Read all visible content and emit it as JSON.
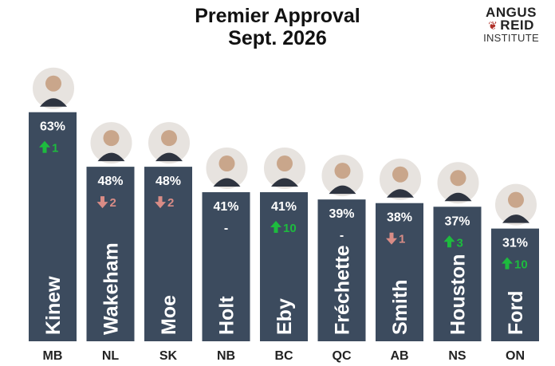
{
  "header": {
    "title_line1": "Premier Approval",
    "title_line2": "Sept. 2026"
  },
  "logo": {
    "line1": "ANGUS",
    "line2": "REID",
    "line3": "INSTITUTE"
  },
  "colors": {
    "bar": "#3c4b5e",
    "up": "#1dbb3e",
    "down": "#d98c86",
    "label": "#ffffff",
    "province": "#222222"
  },
  "chart_data": {
    "type": "bar",
    "title": "Premier Approval Sept. 2026",
    "ylim": [
      0,
      75
    ],
    "grid": false,
    "categories": [
      "MB",
      "NL",
      "SK",
      "NB",
      "BC",
      "QC",
      "AB",
      "NS",
      "ON"
    ],
    "premiers": [
      "Kinew",
      "Wakeham",
      "Moe",
      "Holt",
      "Eby",
      "Fréchette",
      "Smith",
      "Houston",
      "Ford"
    ],
    "values": [
      63,
      48,
      48,
      41,
      41,
      39,
      38,
      37,
      31
    ],
    "value_labels": [
      "63%",
      "48%",
      "48%",
      "41%",
      "41%",
      "39%",
      "38%",
      "37%",
      "31%"
    ],
    "changes": [
      {
        "direction": "up",
        "text": "1"
      },
      {
        "direction": "down",
        "text": "2"
      },
      {
        "direction": "down",
        "text": "2"
      },
      {
        "direction": "none",
        "text": "-"
      },
      {
        "direction": "up",
        "text": "10"
      },
      {
        "direction": "none",
        "text": "-"
      },
      {
        "direction": "down",
        "text": "1"
      },
      {
        "direction": "up",
        "text": "3"
      },
      {
        "direction": "up",
        "text": "10"
      }
    ]
  }
}
